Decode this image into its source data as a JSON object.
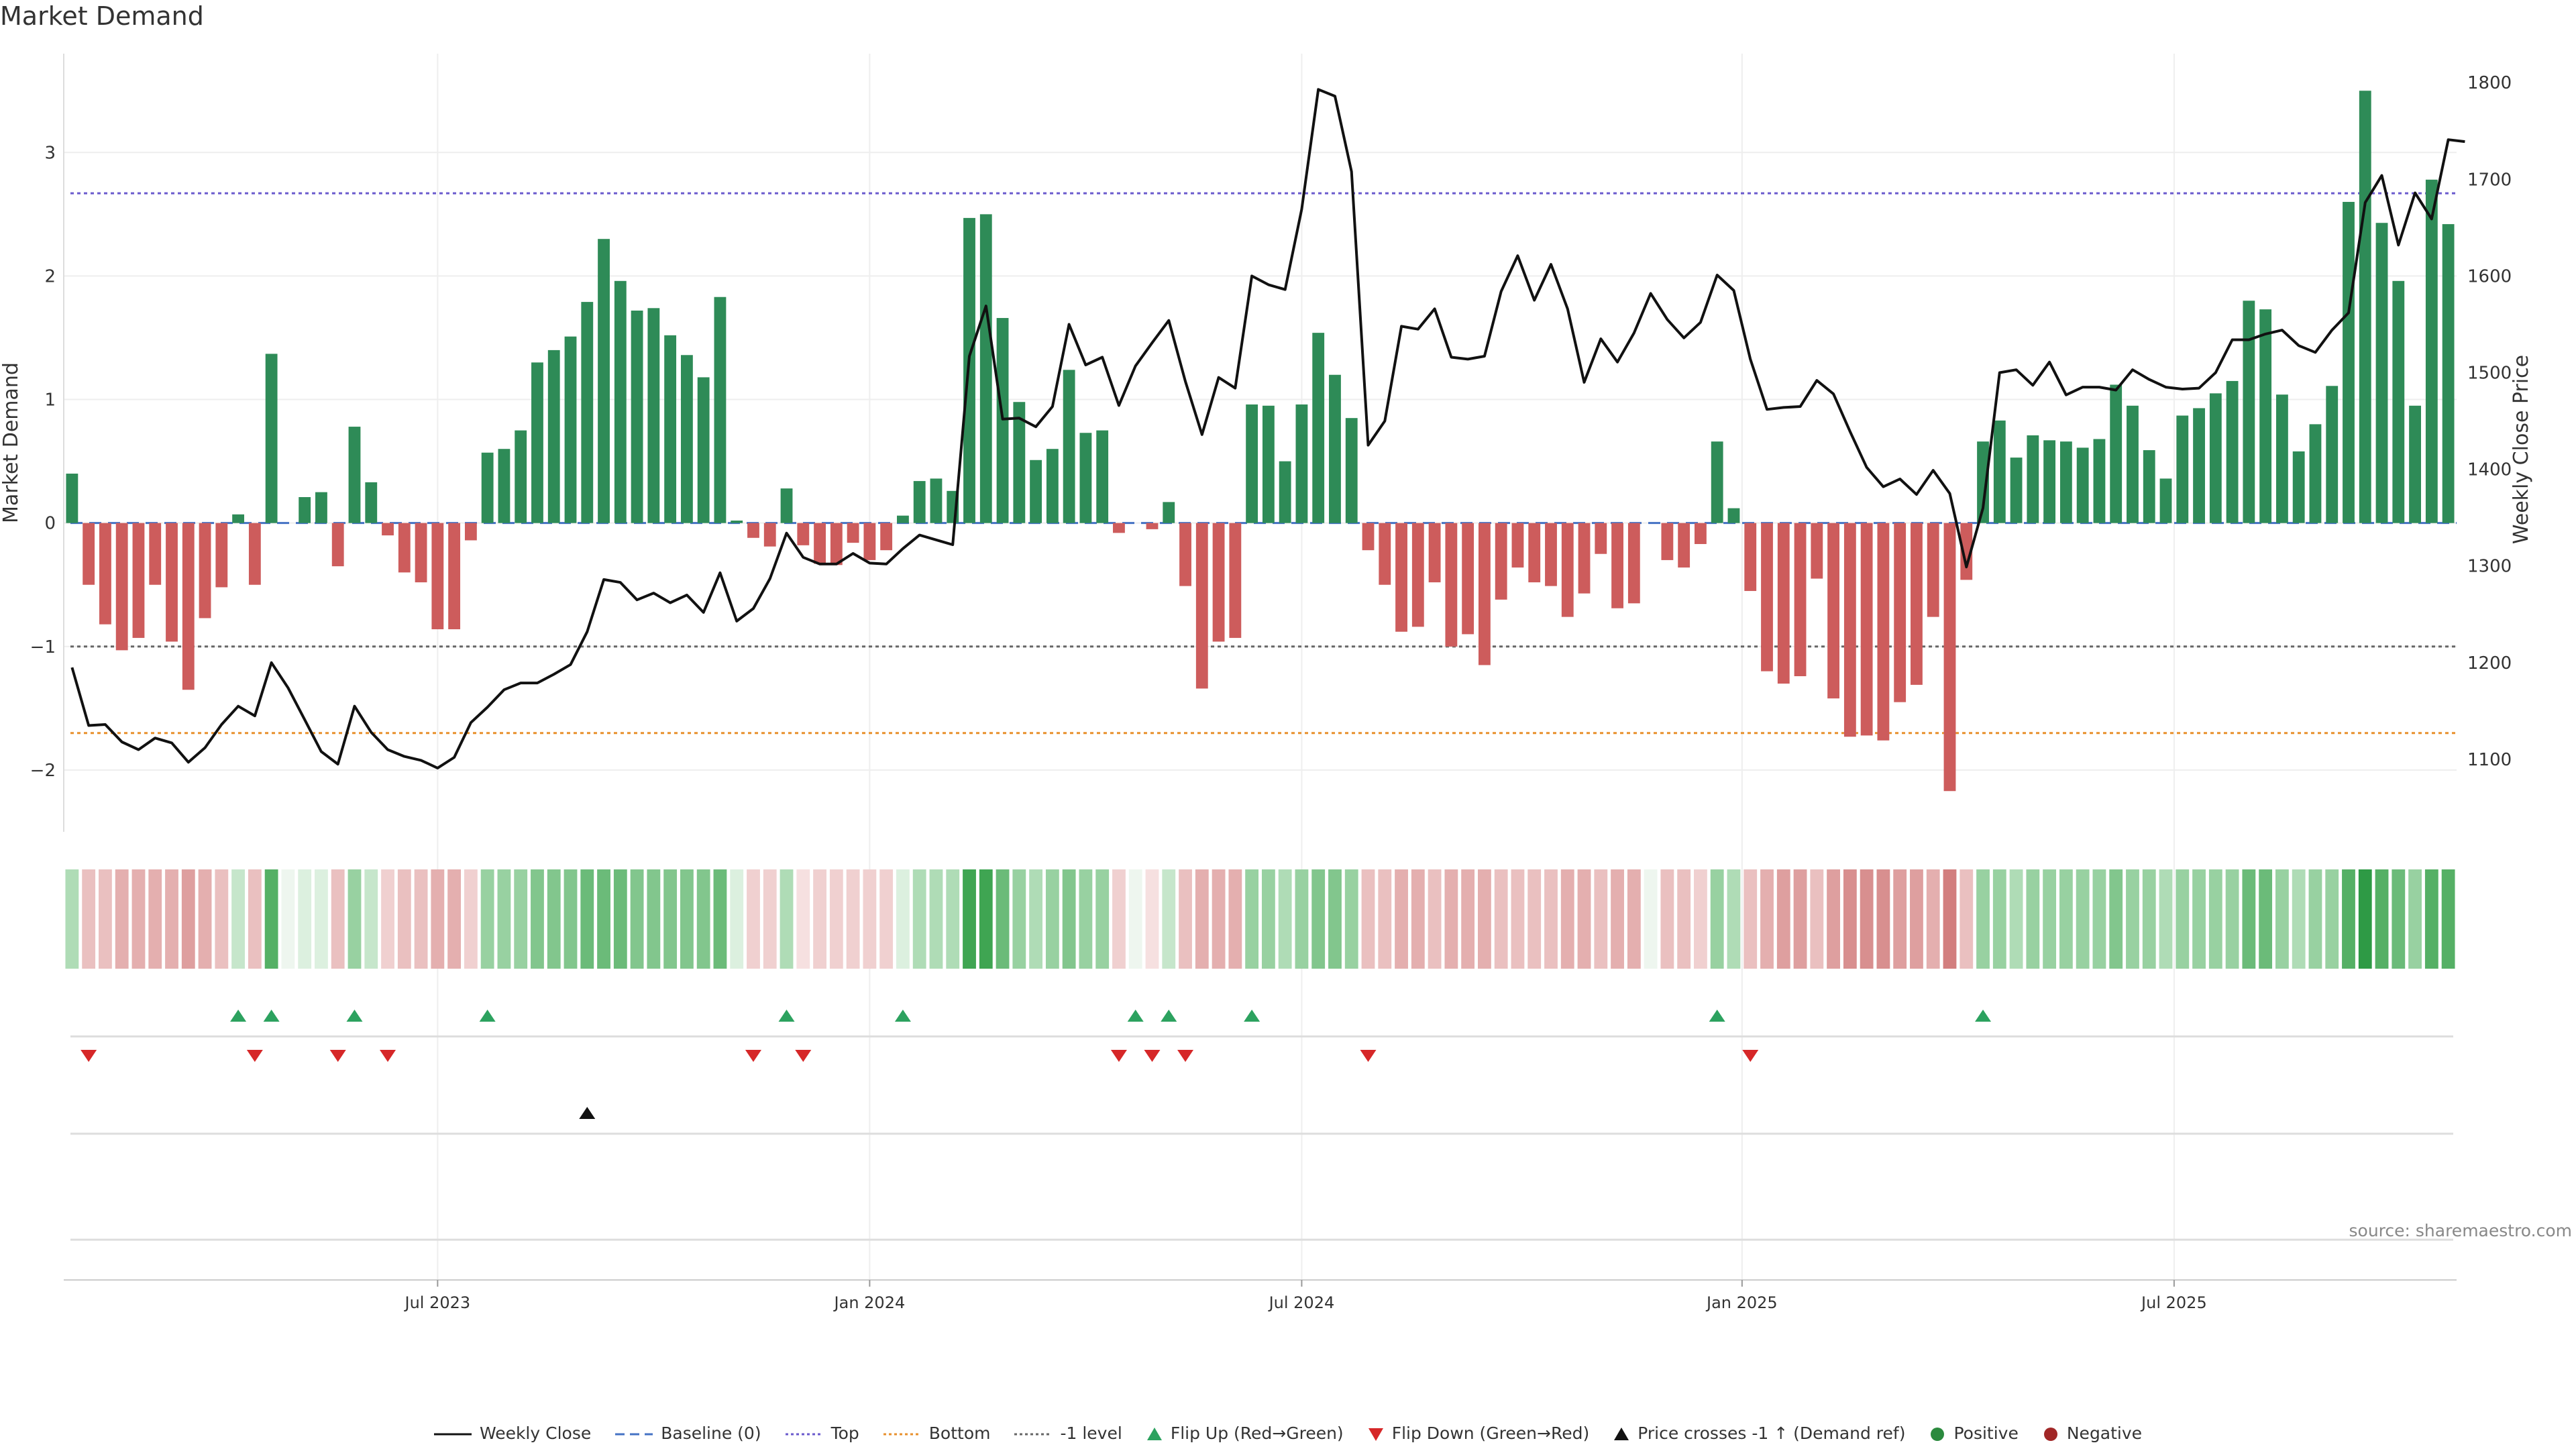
{
  "title": "Market Demand",
  "source": "source: sharemaestro.com",
  "chart_data": {
    "type": "bar",
    "title": "Market Demand",
    "ylabel": "Market Demand",
    "ylabel_right": "Weekly Close Price",
    "ylim": [
      -2.5,
      3.8
    ],
    "yticks": [
      -2,
      -1,
      0,
      1,
      2,
      3
    ],
    "ylim_right": [
      1025,
      1830
    ],
    "yticks_right": [
      1100,
      1200,
      1300,
      1400,
      1500,
      1600,
      1700,
      1800
    ],
    "xticks": [
      {
        "label": "Jul 2023",
        "index": 22
      },
      {
        "label": "Jan 2024",
        "index": 48
      },
      {
        "label": "Jul 2024",
        "index": 74
      },
      {
        "label": "Jan 2025",
        "index": 100.5
      },
      {
        "label": "Jul 2025",
        "index": 126.5
      }
    ],
    "levels": {
      "top": 2.67,
      "bottom": -1.7,
      "minus_one": -1.0,
      "baseline": 0
    },
    "demand": [
      0.4,
      -0.5,
      -0.82,
      -1.03,
      -0.93,
      -0.5,
      -0.96,
      -1.35,
      -0.77,
      -0.52,
      0.07,
      -0.5,
      1.37,
      0,
      0.21,
      0.25,
      -0.35,
      0.78,
      0.33,
      -0.1,
      -0.4,
      -0.48,
      -0.86,
      -0.86,
      -0.14,
      0.57,
      0.6,
      0.75,
      1.3,
      1.4,
      1.51,
      1.79,
      2.3,
      1.96,
      1.72,
      1.74,
      1.52,
      1.36,
      1.18,
      1.83,
      0.02,
      -0.12,
      -0.19,
      0.28,
      -0.18,
      -0.33,
      -0.34,
      -0.16,
      -0.3,
      -0.22,
      0.06,
      0.34,
      0.36,
      0.26,
      2.47,
      2.5,
      1.66,
      0.98,
      0.51,
      0.6,
      1.24,
      0.73,
      0.75,
      -0.08,
      0,
      -0.05,
      0.17,
      -0.51,
      -1.34,
      -0.96,
      -0.93,
      0.96,
      0.95,
      0.5,
      0.96,
      1.54,
      1.2,
      0.85,
      -0.22,
      -0.5,
      -0.88,
      -0.84,
      -0.48,
      -1.0,
      -0.9,
      -1.15,
      -0.62,
      -0.36,
      -0.48,
      -0.51,
      -0.76,
      -0.57,
      -0.25,
      -0.69,
      -0.65,
      0,
      -0.3,
      -0.36,
      -0.17,
      0.66,
      0.12,
      -0.55,
      -1.2,
      -1.3,
      -1.24,
      -0.45,
      -1.42,
      -1.73,
      -1.72,
      -1.76,
      -1.45,
      -1.31,
      -0.76,
      -2.17,
      -0.46,
      0.66,
      0.83,
      0.53,
      0.71,
      0.67,
      0.66,
      0.61,
      0.68,
      1.12,
      0.95,
      0.59,
      0.36,
      0.87,
      0.93,
      1.05,
      1.15,
      1.8,
      1.73,
      1.04,
      0.58,
      0.8,
      1.11,
      2.6,
      3.5,
      2.43,
      1.96,
      0.95,
      2.78,
      2.42
    ],
    "price": [
      1195,
      1135,
      1136,
      1118,
      1110,
      1122,
      1117,
      1097,
      1112,
      1136,
      1155,
      1145,
      1200,
      1174,
      1141,
      1108,
      1095,
      1155,
      1128,
      1110,
      1103,
      1099,
      1091,
      1102,
      1138,
      1154,
      1172,
      1179,
      1179,
      1188,
      1198,
      1232,
      1286,
      1283,
      1265,
      1272,
      1262,
      1270,
      1252,
      1293,
      1243,
      1256,
      1287,
      1334,
      1309,
      1302,
      1302,
      1313,
      1303,
      1302,
      1318,
      1332,
      1327,
      1322,
      1517,
      1569,
      1452,
      1453,
      1444,
      1465,
      1550,
      1508,
      1516,
      1466,
      1507,
      1531,
      1554,
      1491,
      1436,
      1495,
      1484,
      1600,
      1591,
      1586,
      1669,
      1793,
      1786,
      1708,
      1425,
      1450,
      1548,
      1545,
      1566,
      1516,
      1514,
      1517,
      1584,
      1621,
      1575,
      1612,
      1566,
      1490,
      1535,
      1511,
      1541,
      1582,
      1555,
      1536,
      1552,
      1601,
      1585,
      1514,
      1462,
      1464,
      1465,
      1492,
      1478,
      1439,
      1402,
      1382,
      1390,
      1374,
      1399,
      1375,
      1299,
      1360,
      1500,
      1503,
      1487,
      1511,
      1477,
      1485,
      1485,
      1482,
      1503,
      1493,
      1485,
      1483,
      1484,
      1500,
      1534,
      1534,
      1540,
      1544,
      1528,
      1521,
      1544,
      1562,
      1676,
      1704,
      1632,
      1686,
      1659,
      1741,
      1739
    ],
    "heat_shades": [
      3,
      3,
      3,
      4,
      4,
      4,
      4,
      5,
      4,
      3,
      2,
      3,
      7,
      0,
      1,
      1,
      3,
      4,
      2,
      2,
      3,
      3,
      4,
      4,
      2,
      4,
      4,
      4,
      5,
      5,
      5,
      6,
      6,
      6,
      5,
      5,
      5,
      5,
      5,
      6,
      1,
      2,
      2,
      3,
      1,
      2,
      2,
      2,
      2,
      2,
      1,
      3,
      3,
      3,
      8,
      8,
      6,
      4,
      3,
      4,
      5,
      4,
      4,
      2,
      1,
      1,
      2,
      3,
      4,
      4,
      4,
      4,
      4,
      3,
      4,
      5,
      5,
      4,
      3,
      3,
      4,
      4,
      3,
      4,
      4,
      4,
      3,
      3,
      3,
      3,
      4,
      4,
      3,
      4,
      4,
      0,
      3,
      3,
      2,
      4,
      3,
      3,
      4,
      5,
      5,
      3,
      5,
      6,
      6,
      6,
      5,
      5,
      4,
      7,
      3,
      4,
      4,
      3,
      4,
      4,
      4,
      4,
      4,
      5,
      4,
      4,
      3,
      4,
      4,
      4,
      4,
      6,
      6,
      4,
      3,
      4,
      4,
      7,
      9,
      7,
      6,
      4,
      7,
      7
    ],
    "flip_up_indices": [
      10,
      12,
      17,
      25,
      43,
      50,
      64,
      66,
      71,
      99,
      115
    ],
    "flip_down_indices": [
      1,
      11,
      16,
      19,
      41,
      44,
      63,
      65,
      67,
      78,
      101
    ],
    "price_cross_indices": [
      31
    ],
    "legend": [
      {
        "label": "Weekly Close",
        "kind": "line",
        "color": "#111111"
      },
      {
        "label": "Baseline (0)",
        "kind": "dashed",
        "color": "#4472c4"
      },
      {
        "label": "Top",
        "kind": "dotted",
        "color": "#6a5acd"
      },
      {
        "label": "Bottom",
        "kind": "dotted",
        "color": "#e8912d"
      },
      {
        "label": "-1 level",
        "kind": "dotted",
        "color": "#666666"
      },
      {
        "label": "Flip Up (Red→Green)",
        "kind": "tri-up",
        "color": "#2ca25f"
      },
      {
        "label": "Flip Down (Green→Red)",
        "kind": "tri-down",
        "color": "#d62728"
      },
      {
        "label": "Price crosses -1 ↑ (Demand ref)",
        "kind": "tri-up",
        "color": "#111111"
      },
      {
        "label": "Positive",
        "kind": "circle",
        "color": "#2b8a3e"
      },
      {
        "label": "Negative",
        "kind": "circle",
        "color": "#a12727"
      }
    ]
  },
  "colors": {
    "positive_bar": "#2e8b57",
    "negative_bar": "#cd5c5c",
    "price_line": "#111111",
    "heat_green": "#2ea14a",
    "heat_red": "#c0393b"
  }
}
